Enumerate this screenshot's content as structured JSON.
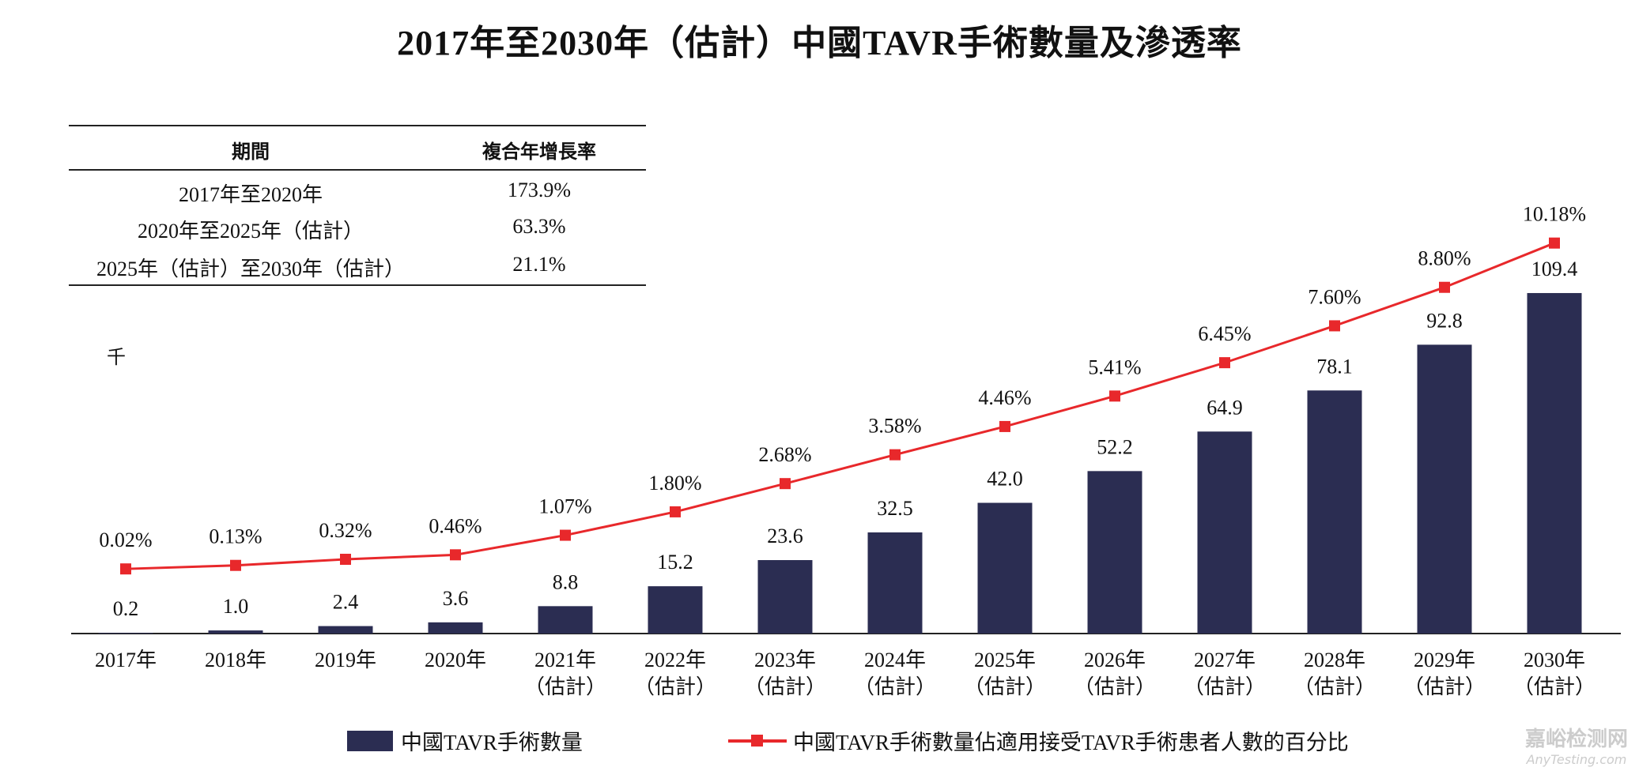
{
  "title": "2017年至2030年（估計）中國TAVR手術數量及滲透率",
  "cagr_table": {
    "headers": [
      "期間",
      "複合年增長率"
    ],
    "rows": [
      {
        "period": "2017年至2020年",
        "cagr": "173.9%"
      },
      {
        "period": "2020年至2025年（估計）",
        "cagr": "63.3%"
      },
      {
        "period": "2025年（估計）至2030年（估計）",
        "cagr": "21.1%"
      }
    ]
  },
  "watermark": {
    "line1": "嘉峪检测网",
    "line2": "AnyTesting.com"
  },
  "chart_data": {
    "type": "bar+line",
    "title": "2017年至2030年（估計）中國TAVR手術數量及滲透率",
    "ylabel": "千",
    "categories": [
      {
        "year": "2017年",
        "note": ""
      },
      {
        "year": "2018年",
        "note": ""
      },
      {
        "year": "2019年",
        "note": ""
      },
      {
        "year": "2020年",
        "note": ""
      },
      {
        "year": "2021年",
        "note": "（估計）"
      },
      {
        "year": "2022年",
        "note": "（估計）"
      },
      {
        "year": "2023年",
        "note": "（估計）"
      },
      {
        "year": "2024年",
        "note": "（估計）"
      },
      {
        "year": "2025年",
        "note": "（估計）"
      },
      {
        "year": "2026年",
        "note": "（估計）"
      },
      {
        "year": "2027年",
        "note": "（估計）"
      },
      {
        "year": "2028年",
        "note": "（估計）"
      },
      {
        "year": "2029年",
        "note": "（估計）"
      },
      {
        "year": "2030年",
        "note": "（估計）"
      }
    ],
    "series": [
      {
        "name": "中國TAVR手術數量",
        "type": "bar",
        "color": "#2b2d52",
        "values": [
          0.2,
          1.0,
          2.4,
          3.6,
          8.8,
          15.2,
          23.6,
          32.5,
          42.0,
          52.2,
          64.9,
          78.1,
          92.8,
          109.4
        ],
        "labels": [
          "0.2",
          "1.0",
          "2.4",
          "3.6",
          "8.8",
          "15.2",
          "23.6",
          "32.5",
          "42.0",
          "52.2",
          "64.9",
          "78.1",
          "92.8",
          "109.4"
        ]
      },
      {
        "name": "中國TAVR手術數量佔適用接受TAVR手術患者人數的百分比",
        "type": "line",
        "color": "#e8282b",
        "values": [
          0.02,
          0.13,
          0.32,
          0.46,
          1.07,
          1.8,
          2.68,
          3.58,
          4.46,
          5.41,
          6.45,
          7.6,
          8.8,
          10.18
        ],
        "labels": [
          "0.02%",
          "0.13%",
          "0.32%",
          "0.46%",
          "1.07%",
          "1.80%",
          "2.68%",
          "3.58%",
          "4.46%",
          "5.41%",
          "6.45%",
          "7.60%",
          "8.80%",
          "10.18%"
        ]
      }
    ],
    "legend_position": "bottom",
    "grid": false
  }
}
